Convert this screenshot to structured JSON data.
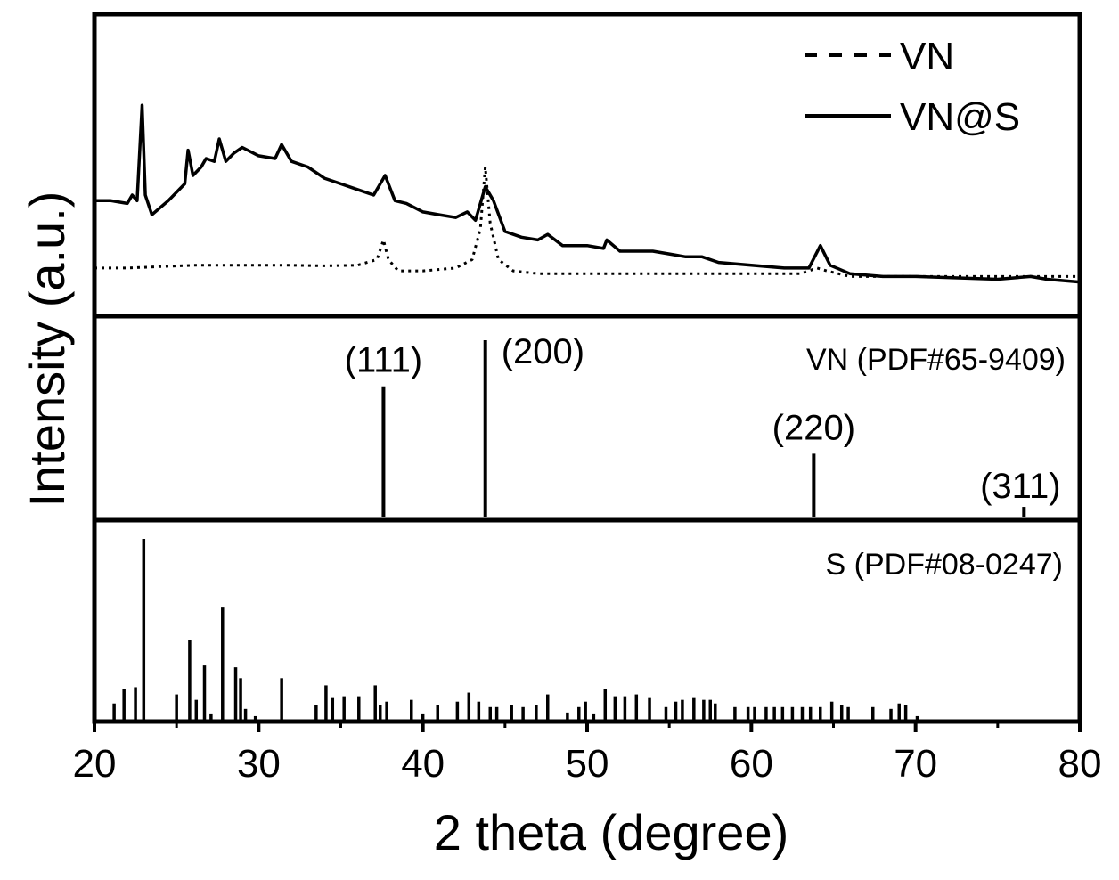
{
  "chart_data": {
    "type": "line",
    "xlabel": "2 theta (degree)",
    "ylabel": "Intensity (a.u.)",
    "xlim": [
      20,
      80
    ],
    "x_ticks": [
      "20",
      "30",
      "40",
      "50",
      "60",
      "70",
      "80"
    ],
    "legend": {
      "placement": "top-right",
      "entries": [
        "VN",
        "VN@S"
      ]
    },
    "panels": [
      {
        "id": "xrd",
        "series": [
          {
            "name": "VN",
            "style": "dashed",
            "points": [
              [
                20,
                0.14
              ],
              [
                22,
                0.14
              ],
              [
                24,
                0.145
              ],
              [
                26,
                0.15
              ],
              [
                28,
                0.15
              ],
              [
                30,
                0.15
              ],
              [
                32,
                0.15
              ],
              [
                34,
                0.148
              ],
              [
                36,
                0.15
              ],
              [
                37.2,
                0.17
              ],
              [
                37.6,
                0.24
              ],
              [
                37.9,
                0.17
              ],
              [
                38.5,
                0.13
              ],
              [
                40,
                0.13
              ],
              [
                41,
                0.135
              ],
              [
                42,
                0.14
              ],
              [
                43,
                0.17
              ],
              [
                43.5,
                0.28
              ],
              [
                43.8,
                0.5
              ],
              [
                44.1,
                0.3
              ],
              [
                44.6,
                0.17
              ],
              [
                45.5,
                0.13
              ],
              [
                47,
                0.12
              ],
              [
                50,
                0.12
              ],
              [
                55,
                0.12
              ],
              [
                60,
                0.12
              ],
              [
                63,
                0.12
              ],
              [
                64,
                0.14
              ],
              [
                64.6,
                0.13
              ],
              [
                66,
                0.11
              ],
              [
                70,
                0.11
              ],
              [
                75,
                0.11
              ],
              [
                80,
                0.11
              ]
            ]
          },
          {
            "name": "VN@S",
            "style": "solid",
            "points": [
              [
                20,
                0.38
              ],
              [
                21,
                0.38
              ],
              [
                22,
                0.37
              ],
              [
                22.3,
                0.4
              ],
              [
                22.6,
                0.38
              ],
              [
                22.9,
                0.72
              ],
              [
                23.1,
                0.4
              ],
              [
                23.5,
                0.33
              ],
              [
                24.5,
                0.38
              ],
              [
                25.5,
                0.44
              ],
              [
                25.7,
                0.56
              ],
              [
                26,
                0.47
              ],
              [
                26.5,
                0.5
              ],
              [
                26.8,
                0.53
              ],
              [
                27.3,
                0.52
              ],
              [
                27.6,
                0.6
              ],
              [
                28,
                0.52
              ],
              [
                28.5,
                0.55
              ],
              [
                29,
                0.57
              ],
              [
                30,
                0.54
              ],
              [
                31,
                0.53
              ],
              [
                31.4,
                0.58
              ],
              [
                32,
                0.52
              ],
              [
                33,
                0.5
              ],
              [
                34,
                0.46
              ],
              [
                35,
                0.44
              ],
              [
                36,
                0.42
              ],
              [
                37,
                0.4
              ],
              [
                37.7,
                0.47
              ],
              [
                38.3,
                0.38
              ],
              [
                39,
                0.37
              ],
              [
                40,
                0.34
              ],
              [
                41,
                0.33
              ],
              [
                42,
                0.32
              ],
              [
                42.7,
                0.34
              ],
              [
                43.2,
                0.31
              ],
              [
                43.8,
                0.43
              ],
              [
                44.3,
                0.38
              ],
              [
                45,
                0.27
              ],
              [
                46,
                0.25
              ],
              [
                47,
                0.24
              ],
              [
                47.6,
                0.26
              ],
              [
                48.5,
                0.22
              ],
              [
                49.5,
                0.22
              ],
              [
                50,
                0.22
              ],
              [
                51,
                0.21
              ],
              [
                51.2,
                0.24
              ],
              [
                52,
                0.2
              ],
              [
                53,
                0.2
              ],
              [
                54,
                0.2
              ],
              [
                55,
                0.19
              ],
              [
                56,
                0.18
              ],
              [
                57,
                0.18
              ],
              [
                58,
                0.16
              ],
              [
                60,
                0.15
              ],
              [
                62,
                0.14
              ],
              [
                63.5,
                0.14
              ],
              [
                64.2,
                0.22
              ],
              [
                64.8,
                0.15
              ],
              [
                66,
                0.12
              ],
              [
                68,
                0.11
              ],
              [
                70,
                0.11
              ],
              [
                75,
                0.1
              ],
              [
                77,
                0.11
              ],
              [
                78,
                0.1
              ],
              [
                80,
                0.09
              ]
            ]
          }
        ]
      },
      {
        "id": "vn-reference",
        "label": "VN (PDF#65-9409)",
        "type": "stick",
        "peaks": [
          {
            "x": 37.6,
            "y": 0.74,
            "hkl": "(111)"
          },
          {
            "x": 43.8,
            "y": 1.0,
            "hkl": "(200)"
          },
          {
            "x": 63.8,
            "y": 0.36,
            "hkl": "(220)"
          },
          {
            "x": 76.6,
            "y": 0.06,
            "hkl": "(311)"
          }
        ]
      },
      {
        "id": "s-reference",
        "label": "S (PDF#08-0247)",
        "type": "stick",
        "peaks": [
          {
            "x": 21.2,
            "y": 0.09
          },
          {
            "x": 21.8,
            "y": 0.17
          },
          {
            "x": 22.5,
            "y": 0.18
          },
          {
            "x": 23.0,
            "y": 1.0
          },
          {
            "x": 25.0,
            "y": 0.14
          },
          {
            "x": 25.8,
            "y": 0.44
          },
          {
            "x": 26.2,
            "y": 0.11
          },
          {
            "x": 26.7,
            "y": 0.3
          },
          {
            "x": 27.1,
            "y": 0.03
          },
          {
            "x": 27.8,
            "y": 0.62
          },
          {
            "x": 28.6,
            "y": 0.29
          },
          {
            "x": 28.9,
            "y": 0.23
          },
          {
            "x": 29.2,
            "y": 0.06
          },
          {
            "x": 29.8,
            "y": 0.02
          },
          {
            "x": 31.4,
            "y": 0.23
          },
          {
            "x": 33.5,
            "y": 0.08
          },
          {
            "x": 34.1,
            "y": 0.19
          },
          {
            "x": 34.5,
            "y": 0.12
          },
          {
            "x": 35.2,
            "y": 0.13
          },
          {
            "x": 36.1,
            "y": 0.13
          },
          {
            "x": 37.1,
            "y": 0.19
          },
          {
            "x": 37.4,
            "y": 0.08
          },
          {
            "x": 37.8,
            "y": 0.1
          },
          {
            "x": 39.3,
            "y": 0.11
          },
          {
            "x": 40.0,
            "y": 0.03
          },
          {
            "x": 40.9,
            "y": 0.08
          },
          {
            "x": 42.1,
            "y": 0.1
          },
          {
            "x": 42.8,
            "y": 0.15
          },
          {
            "x": 43.4,
            "y": 0.1
          },
          {
            "x": 44.1,
            "y": 0.07
          },
          {
            "x": 44.5,
            "y": 0.07
          },
          {
            "x": 45.4,
            "y": 0.08
          },
          {
            "x": 46.1,
            "y": 0.07
          },
          {
            "x": 46.9,
            "y": 0.08
          },
          {
            "x": 47.6,
            "y": 0.14
          },
          {
            "x": 48.8,
            "y": 0.04
          },
          {
            "x": 49.5,
            "y": 0.07
          },
          {
            "x": 49.9,
            "y": 0.1
          },
          {
            "x": 50.4,
            "y": 0.03
          },
          {
            "x": 51.1,
            "y": 0.17
          },
          {
            "x": 51.7,
            "y": 0.13
          },
          {
            "x": 52.3,
            "y": 0.13
          },
          {
            "x": 53.0,
            "y": 0.14
          },
          {
            "x": 53.8,
            "y": 0.12
          },
          {
            "x": 54.8,
            "y": 0.07
          },
          {
            "x": 55.4,
            "y": 0.1
          },
          {
            "x": 55.8,
            "y": 0.11
          },
          {
            "x": 56.5,
            "y": 0.12
          },
          {
            "x": 57.1,
            "y": 0.11
          },
          {
            "x": 57.5,
            "y": 0.11
          },
          {
            "x": 57.8,
            "y": 0.09
          },
          {
            "x": 59.0,
            "y": 0.07
          },
          {
            "x": 59.8,
            "y": 0.07
          },
          {
            "x": 60.2,
            "y": 0.07
          },
          {
            "x": 60.9,
            "y": 0.07
          },
          {
            "x": 61.4,
            "y": 0.07
          },
          {
            "x": 61.9,
            "y": 0.07
          },
          {
            "x": 62.5,
            "y": 0.07
          },
          {
            "x": 63.1,
            "y": 0.07
          },
          {
            "x": 63.6,
            "y": 0.07
          },
          {
            "x": 64.2,
            "y": 0.07
          },
          {
            "x": 64.9,
            "y": 0.1
          },
          {
            "x": 65.5,
            "y": 0.08
          },
          {
            "x": 65.9,
            "y": 0.07
          },
          {
            "x": 67.4,
            "y": 0.07
          },
          {
            "x": 68.5,
            "y": 0.06
          },
          {
            "x": 69.0,
            "y": 0.09
          },
          {
            "x": 69.4,
            "y": 0.08
          },
          {
            "x": 70.1,
            "y": 0.02
          }
        ]
      }
    ]
  }
}
